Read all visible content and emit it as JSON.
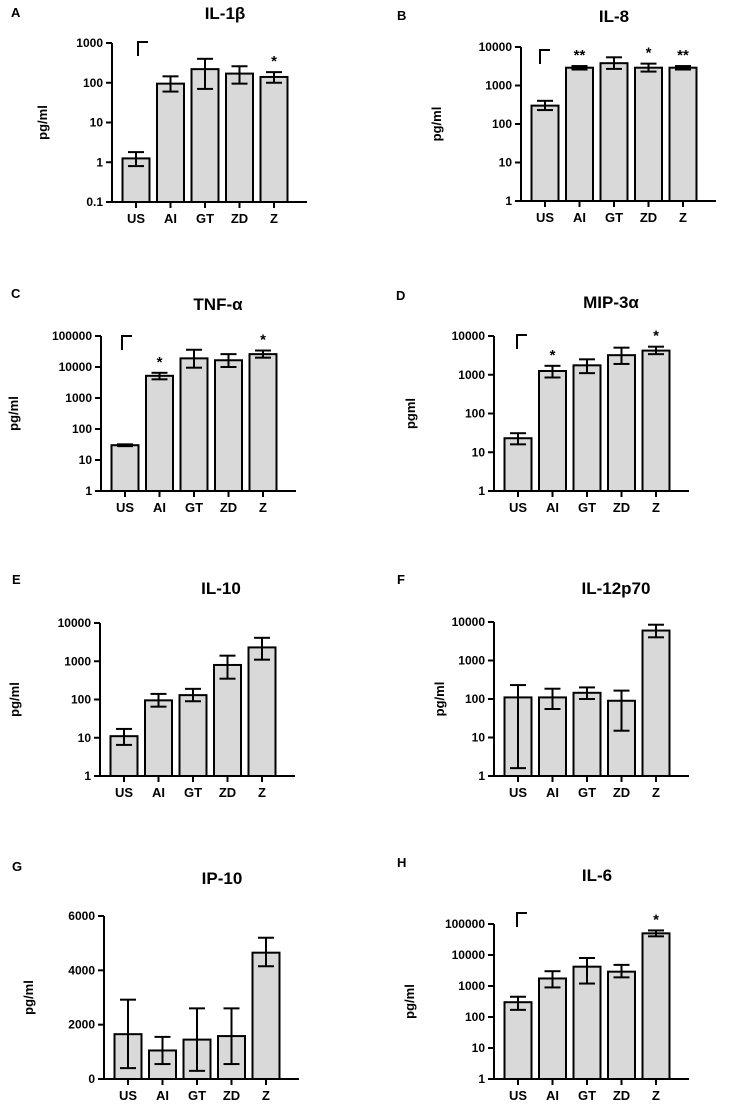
{
  "chart_data": [
    {
      "panel": "A",
      "title": "IL-1β",
      "ylabel": "pg/ml",
      "type": "bar",
      "scale": "log",
      "ticks": [
        "0.1",
        "1",
        "10",
        "100",
        "1000"
      ],
      "ylim": [
        0.1,
        1000
      ],
      "categories": [
        "US",
        "AI",
        "GT",
        "ZD",
        "Z"
      ],
      "values": [
        1.25,
        95,
        220,
        170,
        140
      ],
      "err_low": [
        0.8,
        60,
        70,
        95,
        100
      ],
      "err_high": [
        1.8,
        145,
        400,
        260,
        185
      ],
      "annotations": [
        "",
        "",
        "",
        "",
        "*"
      ],
      "bracket": "⌐"
    },
    {
      "panel": "B",
      "title": "IL-8",
      "ylabel": "pg/ml",
      "type": "bar",
      "scale": "log",
      "ticks": [
        "1",
        "10",
        "100",
        "1000",
        "10000"
      ],
      "ylim": [
        1,
        10000
      ],
      "categories": [
        "US",
        "AI",
        "GT",
        "ZD",
        "Z"
      ],
      "values": [
        300,
        2900,
        3800,
        2900,
        2900
      ],
      "err_low": [
        230,
        2600,
        2700,
        2300,
        2600
      ],
      "err_high": [
        400,
        3200,
        5400,
        3700,
        3200
      ],
      "annotations": [
        "",
        "**",
        "",
        "*",
        "**"
      ],
      "bracket": "⌐"
    },
    {
      "panel": "C",
      "title": "TNF-α",
      "ylabel": "pg/ml",
      "type": "bar",
      "scale": "log",
      "ticks": [
        "1",
        "10",
        "100",
        "1000",
        "10000",
        "100000"
      ],
      "ylim": [
        1,
        100000
      ],
      "categories": [
        "US",
        "AI",
        "GT",
        "ZD",
        "Z"
      ],
      "values": [
        30,
        5200,
        19000,
        16500,
        26000
      ],
      "err_low": [
        28,
        4000,
        9500,
        10000,
        20000
      ],
      "err_high": [
        32,
        6500,
        36000,
        26000,
        34000
      ],
      "annotations": [
        "",
        "*",
        "",
        "",
        "*"
      ],
      "bracket": "⌐"
    },
    {
      "panel": "D",
      "title": "MIP-3α",
      "ylabel": "pgml",
      "type": "bar",
      "scale": "log",
      "ticks": [
        "1",
        "10",
        "100",
        "1000",
        "10000"
      ],
      "ylim": [
        1,
        10000
      ],
      "categories": [
        "US",
        "AI",
        "GT",
        "ZD",
        "Z"
      ],
      "values": [
        23,
        1250,
        1750,
        3200,
        4200
      ],
      "err_low": [
        16,
        850,
        1100,
        1900,
        3400
      ],
      "err_high": [
        31,
        1700,
        2500,
        5000,
        5300
      ],
      "annotations": [
        "",
        "*",
        "",
        "",
        "*"
      ],
      "bracket": "⌐"
    },
    {
      "panel": "E",
      "title": "IL-10",
      "ylabel": "pg/ml",
      "type": "bar",
      "scale": "log",
      "ticks": [
        "1",
        "10",
        "100",
        "1000",
        "10000"
      ],
      "ylim": [
        1,
        10000
      ],
      "categories": [
        "US",
        "AI",
        "GT",
        "ZD",
        "Z"
      ],
      "values": [
        11,
        95,
        130,
        800,
        2300
      ],
      "err_low": [
        6.5,
        65,
        90,
        350,
        1100
      ],
      "err_high": [
        17,
        140,
        190,
        1400,
        4100
      ],
      "annotations": [
        "",
        "",
        "",
        "",
        ""
      ],
      "bracket": ""
    },
    {
      "panel": "F",
      "title": "IL-12p70",
      "ylabel": "pg/ml",
      "type": "bar",
      "scale": "log",
      "ticks": [
        "1",
        "10",
        "100",
        "1000",
        "10000"
      ],
      "ylim": [
        1,
        10000
      ],
      "categories": [
        "US",
        "AI",
        "GT",
        "ZD",
        "Z"
      ],
      "values": [
        110,
        110,
        145,
        90,
        6000
      ],
      "err_low": [
        1.6,
        55,
        100,
        15,
        4000
      ],
      "err_high": [
        230,
        185,
        200,
        165,
        8500
      ],
      "annotations": [
        "",
        "",
        "",
        "",
        ""
      ],
      "bracket": ""
    },
    {
      "panel": "G",
      "title": "IP-10",
      "ylabel": "pg/ml",
      "type": "bar",
      "scale": "linear",
      "ticks": [
        "0",
        "2000",
        "4000",
        "6000"
      ],
      "ylim": [
        0,
        6000
      ],
      "categories": [
        "US",
        "AI",
        "GT",
        "ZD",
        "Z"
      ],
      "values": [
        1650,
        1050,
        1450,
        1580,
        4650
      ],
      "err_low": [
        400,
        550,
        300,
        550,
        4150
      ],
      "err_high": [
        2920,
        1550,
        2600,
        2600,
        5200
      ],
      "annotations": [
        "",
        "",
        "",
        "",
        ""
      ],
      "bracket": ""
    },
    {
      "panel": "H",
      "title": "IL-6",
      "ylabel": "pg/ml",
      "type": "bar",
      "scale": "log",
      "ticks": [
        "1",
        "10",
        "100",
        "1000",
        "10000",
        "100000"
      ],
      "ylim": [
        1,
        100000
      ],
      "categories": [
        "US",
        "AI",
        "GT",
        "ZD",
        "Z"
      ],
      "values": [
        300,
        1750,
        4200,
        2900,
        50000
      ],
      "err_low": [
        170,
        900,
        1200,
        1900,
        40000
      ],
      "err_high": [
        450,
        3000,
        8000,
        4800,
        62000
      ],
      "annotations": [
        "",
        "",
        "",
        "",
        "*"
      ],
      "bracket": "⌐"
    }
  ]
}
